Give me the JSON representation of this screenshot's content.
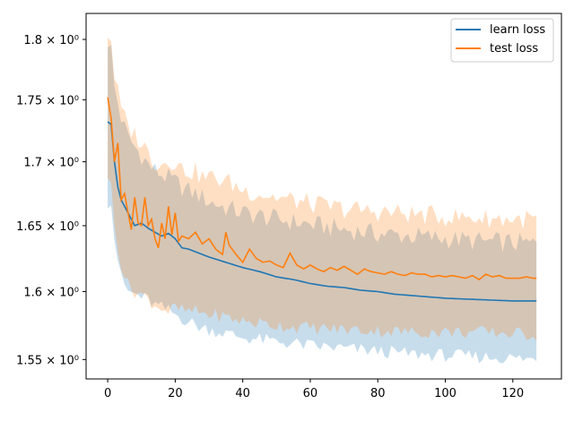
{
  "chart_data": {
    "type": "line",
    "xlabel": "",
    "ylabel": "",
    "yscale": "log",
    "xlim": [
      -6.4,
      134.4
    ],
    "ylim": [
      1.536,
      1.822
    ],
    "x_ticks": [
      0,
      20,
      40,
      60,
      80,
      100,
      120
    ],
    "y_ticks": [
      {
        "value": 1.55,
        "label": "1.55 × 10⁰"
      },
      {
        "value": 1.6,
        "label": "1.6 × 10⁰"
      },
      {
        "value": 1.65,
        "label": "1.65 × 10⁰"
      },
      {
        "value": 1.7,
        "label": "1.7 × 10⁰"
      },
      {
        "value": 1.75,
        "label": "1.75 × 10⁰"
      },
      {
        "value": 1.8,
        "label": "1.8 × 10⁰"
      }
    ],
    "grid": false,
    "legend_position": "top-right",
    "series": [
      {
        "name": "learn loss",
        "color": "#1f77b4",
        "band_color": "#1f77b4",
        "anchors": [
          [
            0,
            1.732
          ],
          [
            1,
            1.73
          ],
          [
            2,
            1.7
          ],
          [
            3,
            1.68
          ],
          [
            4,
            1.67
          ],
          [
            6,
            1.66
          ],
          [
            8,
            1.65
          ],
          [
            10,
            1.652
          ],
          [
            12,
            1.648
          ],
          [
            14,
            1.645
          ],
          [
            16,
            1.642
          ],
          [
            18,
            1.644
          ],
          [
            20,
            1.64
          ],
          [
            22,
            1.633
          ],
          [
            24,
            1.632
          ],
          [
            26,
            1.63
          ],
          [
            28,
            1.628
          ],
          [
            30,
            1.626
          ],
          [
            35,
            1.622
          ],
          [
            40,
            1.618
          ],
          [
            45,
            1.615
          ],
          [
            50,
            1.611
          ],
          [
            55,
            1.609
          ],
          [
            60,
            1.606
          ],
          [
            65,
            1.604
          ],
          [
            70,
            1.603
          ],
          [
            75,
            1.601
          ],
          [
            80,
            1.6
          ],
          [
            85,
            1.598
          ],
          [
            90,
            1.597
          ],
          [
            95,
            1.596
          ],
          [
            100,
            1.595
          ],
          [
            110,
            1.594
          ],
          [
            120,
            1.593
          ],
          [
            127,
            1.593
          ]
        ],
        "band_lower_anchors": [
          [
            0,
            1.668
          ],
          [
            1,
            1.67
          ],
          [
            2,
            1.64
          ],
          [
            4,
            1.61
          ],
          [
            6,
            1.6
          ],
          [
            8,
            1.598
          ],
          [
            10,
            1.596
          ],
          [
            12,
            1.594
          ],
          [
            14,
            1.59
          ],
          [
            16,
            1.588
          ],
          [
            18,
            1.586
          ],
          [
            20,
            1.583
          ],
          [
            22,
            1.58
          ],
          [
            24,
            1.578
          ],
          [
            26,
            1.575
          ],
          [
            28,
            1.573
          ],
          [
            30,
            1.572
          ],
          [
            35,
            1.569
          ],
          [
            40,
            1.566
          ],
          [
            50,
            1.563
          ],
          [
            60,
            1.56
          ],
          [
            70,
            1.558
          ],
          [
            80,
            1.556
          ],
          [
            90,
            1.554
          ],
          [
            100,
            1.553
          ],
          [
            110,
            1.552
          ],
          [
            120,
            1.551
          ],
          [
            127,
            1.55
          ]
        ],
        "band_upper_anchors": [
          [
            0,
            1.798
          ],
          [
            1,
            1.792
          ],
          [
            2,
            1.76
          ],
          [
            4,
            1.735
          ],
          [
            6,
            1.72
          ],
          [
            8,
            1.712
          ],
          [
            10,
            1.705
          ],
          [
            12,
            1.698
          ],
          [
            14,
            1.693
          ],
          [
            16,
            1.69
          ],
          [
            18,
            1.687
          ],
          [
            20,
            1.684
          ],
          [
            22,
            1.68
          ],
          [
            24,
            1.677
          ],
          [
            26,
            1.675
          ],
          [
            28,
            1.672
          ],
          [
            30,
            1.669
          ],
          [
            35,
            1.664
          ],
          [
            40,
            1.66
          ],
          [
            50,
            1.655
          ],
          [
            60,
            1.651
          ],
          [
            70,
            1.647
          ],
          [
            80,
            1.644
          ],
          [
            90,
            1.642
          ],
          [
            100,
            1.64
          ],
          [
            110,
            1.638
          ],
          [
            120,
            1.637
          ],
          [
            127,
            1.636
          ]
        ]
      },
      {
        "name": "test loss",
        "color": "#ff7f0e",
        "band_color": "#ff7f0e",
        "anchors": [
          [
            0,
            1.752
          ],
          [
            1,
            1.735
          ],
          [
            2,
            1.7
          ],
          [
            3,
            1.715
          ],
          [
            4,
            1.67
          ],
          [
            5,
            1.675
          ],
          [
            6,
            1.66
          ],
          [
            7,
            1.647
          ],
          [
            8,
            1.672
          ],
          [
            9,
            1.652
          ],
          [
            10,
            1.65
          ],
          [
            11,
            1.672
          ],
          [
            12,
            1.65
          ],
          [
            13,
            1.655
          ],
          [
            14,
            1.64
          ],
          [
            15,
            1.633
          ],
          [
            16,
            1.652
          ],
          [
            17,
            1.64
          ],
          [
            18,
            1.665
          ],
          [
            19,
            1.643
          ],
          [
            20,
            1.66
          ],
          [
            21,
            1.638
          ],
          [
            22,
            1.642
          ],
          [
            24,
            1.64
          ],
          [
            26,
            1.645
          ],
          [
            28,
            1.636
          ],
          [
            30,
            1.64
          ],
          [
            32,
            1.632
          ],
          [
            34,
            1.628
          ],
          [
            35,
            1.645
          ],
          [
            36,
            1.635
          ],
          [
            38,
            1.628
          ],
          [
            40,
            1.622
          ],
          [
            42,
            1.632
          ],
          [
            44,
            1.625
          ],
          [
            46,
            1.622
          ],
          [
            48,
            1.623
          ],
          [
            50,
            1.62
          ],
          [
            52,
            1.618
          ],
          [
            54,
            1.629
          ],
          [
            56,
            1.62
          ],
          [
            58,
            1.617
          ],
          [
            60,
            1.62
          ],
          [
            62,
            1.617
          ],
          [
            64,
            1.615
          ],
          [
            66,
            1.618
          ],
          [
            68,
            1.616
          ],
          [
            70,
            1.619
          ],
          [
            72,
            1.616
          ],
          [
            74,
            1.613
          ],
          [
            76,
            1.617
          ],
          [
            78,
            1.615
          ],
          [
            80,
            1.614
          ],
          [
            82,
            1.613
          ],
          [
            84,
            1.615
          ],
          [
            86,
            1.613
          ],
          [
            88,
            1.612
          ],
          [
            90,
            1.614
          ],
          [
            92,
            1.613
          ],
          [
            94,
            1.613
          ],
          [
            96,
            1.611
          ],
          [
            98,
            1.612
          ],
          [
            100,
            1.611
          ],
          [
            102,
            1.612
          ],
          [
            104,
            1.611
          ],
          [
            106,
            1.61
          ],
          [
            108,
            1.612
          ],
          [
            110,
            1.609
          ],
          [
            112,
            1.613
          ],
          [
            114,
            1.611
          ],
          [
            116,
            1.612
          ],
          [
            118,
            1.61
          ],
          [
            120,
            1.61
          ],
          [
            122,
            1.61
          ],
          [
            124,
            1.611
          ],
          [
            126,
            1.61
          ],
          [
            127,
            1.61
          ]
        ],
        "band_lower_anchors": [
          [
            0,
            1.69
          ],
          [
            1,
            1.68
          ],
          [
            2,
            1.65
          ],
          [
            4,
            1.62
          ],
          [
            6,
            1.605
          ],
          [
            8,
            1.6
          ],
          [
            10,
            1.598
          ],
          [
            12,
            1.594
          ],
          [
            14,
            1.59
          ],
          [
            16,
            1.588
          ],
          [
            18,
            1.585
          ],
          [
            20,
            1.588
          ],
          [
            22,
            1.586
          ],
          [
            24,
            1.585
          ],
          [
            26,
            1.585
          ],
          [
            28,
            1.584
          ],
          [
            30,
            1.583
          ],
          [
            35,
            1.581
          ],
          [
            40,
            1.578
          ],
          [
            50,
            1.575
          ],
          [
            60,
            1.573
          ],
          [
            70,
            1.572
          ],
          [
            80,
            1.571
          ],
          [
            90,
            1.57
          ],
          [
            100,
            1.57
          ],
          [
            110,
            1.57
          ],
          [
            120,
            1.569
          ],
          [
            127,
            1.568
          ]
        ],
        "band_upper_anchors": [
          [
            0,
            1.805
          ],
          [
            1,
            1.8
          ],
          [
            2,
            1.77
          ],
          [
            4,
            1.742
          ],
          [
            6,
            1.728
          ],
          [
            8,
            1.722
          ],
          [
            10,
            1.715
          ],
          [
            12,
            1.708
          ],
          [
            14,
            1.7
          ],
          [
            16,
            1.698
          ],
          [
            18,
            1.702
          ],
          [
            20,
            1.7
          ],
          [
            22,
            1.694
          ],
          [
            24,
            1.693
          ],
          [
            26,
            1.692
          ],
          [
            28,
            1.688
          ],
          [
            30,
            1.688
          ],
          [
            35,
            1.685
          ],
          [
            40,
            1.678
          ],
          [
            50,
            1.672
          ],
          [
            60,
            1.667
          ],
          [
            70,
            1.663
          ],
          [
            80,
            1.661
          ],
          [
            90,
            1.659
          ],
          [
            100,
            1.657
          ],
          [
            110,
            1.656
          ],
          [
            120,
            1.655
          ],
          [
            127,
            1.655
          ]
        ]
      }
    ]
  }
}
